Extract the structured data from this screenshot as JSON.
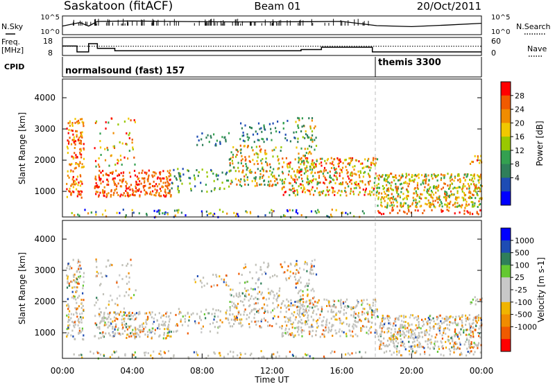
{
  "header": {
    "station": "Saskatoon (fitACF)",
    "beam": "Beam 01",
    "date": "20/Oct/2011"
  },
  "left_labels": {
    "nsky": "N.Sky",
    "freq_line1": "Freq.",
    "freq_line2": "[MHz]",
    "cpid": "CPID"
  },
  "right_labels": {
    "nsearch": "N.Search",
    "nave": "Nave"
  },
  "time_axis": {
    "label": "Time UT",
    "ticks": [
      "00:00",
      "04:00",
      "08:00",
      "12:00",
      "16:00",
      "20:00",
      "00:00"
    ]
  },
  "colors": {
    "power_scale": [
      "#0000ff",
      "#1e4cb4",
      "#2f7f5a",
      "#34a050",
      "#99c800",
      "#f0c800",
      "#f08c00",
      "#f05a00",
      "#ff0000"
    ],
    "velocity_scale": [
      "#ff0000",
      "#f05a00",
      "#f08c00",
      "#f0b400",
      "#c8c8c8",
      "#c8c8c8",
      "#64c832",
      "#2f7f5a",
      "#1e4cb4",
      "#0000ff"
    ],
    "ground_scatter": "#c0c0b8"
  },
  "chart_data": [
    {
      "type": "line",
      "name": "sky-noise",
      "y_tick_labels": [
        "10^5",
        "10^0"
      ],
      "right_tick_labels": [
        "10^5",
        "10^0"
      ],
      "x": [
        "00:00",
        "01:00",
        "01:30",
        "02:00",
        "04:00",
        "06:00",
        "10:00",
        "14:00",
        "16:00",
        "18:00",
        "20:00",
        "22:00",
        "24:00"
      ],
      "values": [
        10,
        40,
        10,
        60,
        70,
        60,
        50,
        55,
        60,
        12,
        8,
        15,
        30
      ]
    },
    {
      "type": "line",
      "name": "frequency-and-nave",
      "y_ticks_left": [
        "18",
        "8"
      ],
      "y_ticks_right": [
        "60",
        "0"
      ],
      "series": [
        {
          "x": [
            "00:00",
            "00:50",
            "00:50",
            "01:30",
            "01:30",
            "02:00",
            "02:00",
            "03:00",
            "03:00",
            "13:40",
            "13:40",
            "14:50",
            "14:50",
            "17:45",
            "17:45",
            "24:00"
          ],
          "values": [
            16,
            16,
            11,
            11,
            18,
            18,
            14,
            14,
            12,
            12,
            13,
            13,
            15,
            15,
            11,
            11
          ]
        },
        {
          "x": [
            "00:00",
            "24:00"
          ],
          "values": [
            17,
            17
          ]
        }
      ]
    },
    {
      "type": "table",
      "name": "cpid",
      "segments": [
        {
          "start": "00:00",
          "end": "17:55",
          "label": "normalsound (fast) 157"
        },
        {
          "start": "17:55",
          "end": "24:00",
          "label": "themis 3300"
        }
      ]
    },
    {
      "type": "heatmap",
      "name": "power",
      "ylabel": "Slant Range [km]",
      "yticks": [
        1000,
        2000,
        3000,
        4000
      ],
      "ylim": [
        180,
        4600
      ],
      "colorbar_label": "Power [dB]",
      "colorbar_ticks": [
        "28",
        "24",
        "20",
        "16",
        "12",
        "8",
        "4"
      ]
    },
    {
      "type": "heatmap",
      "name": "velocity",
      "ylabel": "Slant Range [km]",
      "yticks": [
        1000,
        2000,
        3000,
        4000
      ],
      "ylim": [
        180,
        4600
      ],
      "colorbar_label": "Velocity [m s-1]",
      "colorbar_ticks": [
        "1000",
        "500",
        "100",
        "25",
        "-25",
        "-100",
        "-500",
        "-1000"
      ]
    }
  ]
}
